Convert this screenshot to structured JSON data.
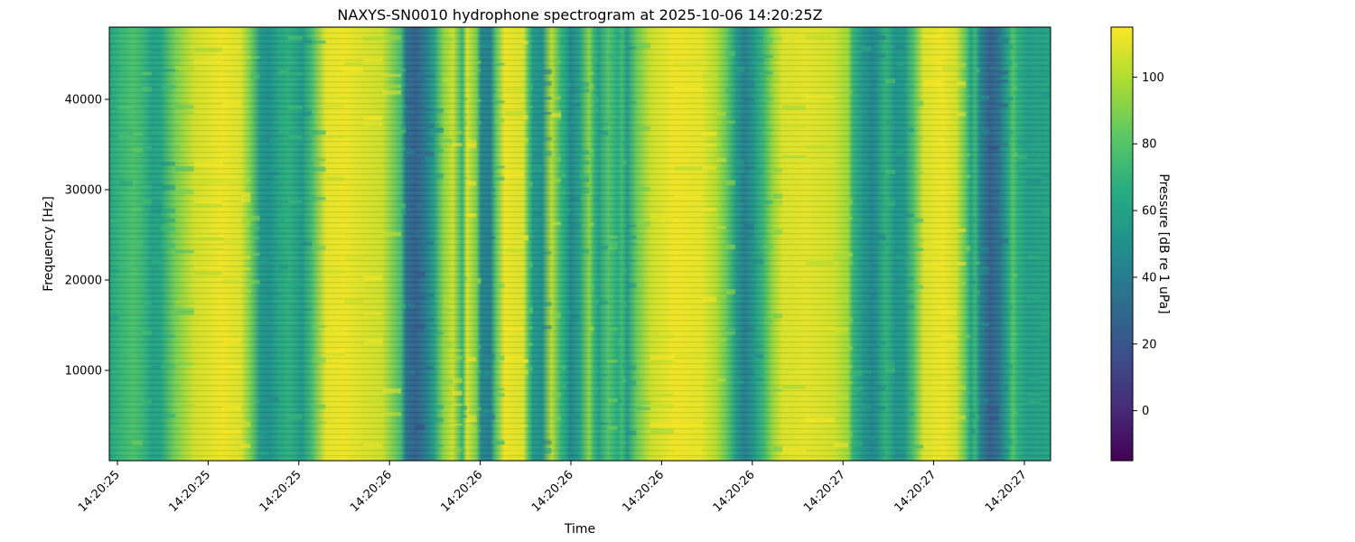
{
  "chart_data": [
    {
      "type": "heatmap",
      "title": "NAXYS-SN0010 hydrophone spectrogram at 2025-10-06 14:20:25Z",
      "xlabel": "Time",
      "ylabel": "Frequency [Hz]",
      "colormap": "viridis",
      "x_tick_labels": [
        "14:20:25",
        "14:20:25",
        "14:20:25",
        "14:20:26",
        "14:20:26",
        "14:20:26",
        "14:20:26",
        "14:20:26",
        "14:20:27",
        "14:20:27",
        "14:20:27"
      ],
      "y_ticks": [
        10000,
        20000,
        30000,
        40000
      ],
      "ylim": [
        0,
        48000
      ],
      "colorbar": {
        "label": "Pressure [dB re 1 uPa]",
        "ticks": [
          0,
          20,
          40,
          60,
          80,
          100
        ],
        "range": [
          -15,
          115
        ]
      },
      "columns": [
        {
          "x": 0.0,
          "level": 62
        },
        {
          "x": 0.01,
          "level": 70
        },
        {
          "x": 0.025,
          "level": 78
        },
        {
          "x": 0.035,
          "level": 72
        },
        {
          "x": 0.045,
          "level": 60
        },
        {
          "x": 0.055,
          "level": 62
        },
        {
          "x": 0.07,
          "level": 88
        },
        {
          "x": 0.09,
          "level": 106
        },
        {
          "x": 0.12,
          "level": 112
        },
        {
          "x": 0.14,
          "level": 108
        },
        {
          "x": 0.15,
          "level": 88
        },
        {
          "x": 0.16,
          "level": 55
        },
        {
          "x": 0.17,
          "level": 50
        },
        {
          "x": 0.18,
          "level": 62
        },
        {
          "x": 0.19,
          "level": 68
        },
        {
          "x": 0.205,
          "level": 55
        },
        {
          "x": 0.215,
          "level": 75
        },
        {
          "x": 0.23,
          "level": 110
        },
        {
          "x": 0.25,
          "level": 112
        },
        {
          "x": 0.27,
          "level": 108
        },
        {
          "x": 0.29,
          "level": 105
        },
        {
          "x": 0.31,
          "level": 75
        },
        {
          "x": 0.315,
          "level": 35
        },
        {
          "x": 0.325,
          "level": 25
        },
        {
          "x": 0.335,
          "level": 38
        },
        {
          "x": 0.345,
          "level": 58
        },
        {
          "x": 0.355,
          "level": 92
        },
        {
          "x": 0.365,
          "level": 105
        },
        {
          "x": 0.375,
          "level": 70
        },
        {
          "x": 0.38,
          "level": 108
        },
        {
          "x": 0.39,
          "level": 88
        },
        {
          "x": 0.395,
          "level": 45
        },
        {
          "x": 0.405,
          "level": 40
        },
        {
          "x": 0.41,
          "level": 78
        },
        {
          "x": 0.42,
          "level": 112
        },
        {
          "x": 0.44,
          "level": 108
        },
        {
          "x": 0.445,
          "level": 80
        },
        {
          "x": 0.45,
          "level": 55
        },
        {
          "x": 0.46,
          "level": 50
        },
        {
          "x": 0.47,
          "level": 102
        },
        {
          "x": 0.48,
          "level": 70
        },
        {
          "x": 0.485,
          "level": 62
        },
        {
          "x": 0.49,
          "level": 45
        },
        {
          "x": 0.5,
          "level": 60
        },
        {
          "x": 0.51,
          "level": 92
        },
        {
          "x": 0.515,
          "level": 70
        },
        {
          "x": 0.52,
          "level": 58
        },
        {
          "x": 0.53,
          "level": 80
        },
        {
          "x": 0.54,
          "level": 65
        },
        {
          "x": 0.545,
          "level": 75
        },
        {
          "x": 0.55,
          "level": 55
        },
        {
          "x": 0.56,
          "level": 85
        },
        {
          "x": 0.575,
          "level": 105
        },
        {
          "x": 0.6,
          "level": 112
        },
        {
          "x": 0.63,
          "level": 110
        },
        {
          "x": 0.645,
          "level": 100
        },
        {
          "x": 0.655,
          "level": 85
        },
        {
          "x": 0.665,
          "level": 58
        },
        {
          "x": 0.675,
          "level": 40
        },
        {
          "x": 0.685,
          "level": 55
        },
        {
          "x": 0.695,
          "level": 72
        },
        {
          "x": 0.705,
          "level": 95
        },
        {
          "x": 0.715,
          "level": 108
        },
        {
          "x": 0.74,
          "level": 110
        },
        {
          "x": 0.77,
          "level": 106
        },
        {
          "x": 0.785,
          "level": 95
        },
        {
          "x": 0.79,
          "level": 70
        },
        {
          "x": 0.8,
          "level": 55
        },
        {
          "x": 0.81,
          "level": 45
        },
        {
          "x": 0.815,
          "level": 50
        },
        {
          "x": 0.825,
          "level": 70
        },
        {
          "x": 0.835,
          "level": 52
        },
        {
          "x": 0.845,
          "level": 55
        },
        {
          "x": 0.855,
          "level": 80
        },
        {
          "x": 0.865,
          "level": 108
        },
        {
          "x": 0.885,
          "level": 112
        },
        {
          "x": 0.9,
          "level": 106
        },
        {
          "x": 0.91,
          "level": 82
        },
        {
          "x": 0.915,
          "level": 60
        },
        {
          "x": 0.92,
          "level": 72
        },
        {
          "x": 0.925,
          "level": 45
        },
        {
          "x": 0.935,
          "level": 25
        },
        {
          "x": 0.945,
          "level": 35
        },
        {
          "x": 0.955,
          "level": 62
        },
        {
          "x": 0.96,
          "level": 80
        },
        {
          "x": 0.965,
          "level": 68
        },
        {
          "x": 0.975,
          "level": 58
        },
        {
          "x": 0.99,
          "level": 60
        },
        {
          "x": 1.0,
          "level": 62
        }
      ]
    }
  ]
}
